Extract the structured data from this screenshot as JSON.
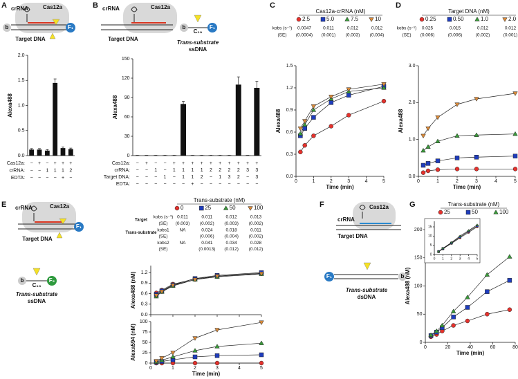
{
  "figure": {
    "panels": [
      "A",
      "B",
      "C",
      "D",
      "E",
      "F",
      "G"
    ],
    "diagrams": {
      "cas12a": "Cas12a",
      "crrna": "crRNA",
      "target_dna": "Target DNA",
      "biotin": "b",
      "f1": "F₁",
      "f2": "F₂",
      "c10": "C₁₀",
      "trans": "Trans-substrate",
      "ssdna": "ssDNA",
      "dsdna": "dsDNA"
    }
  },
  "chart_data": [
    {
      "type": "bar",
      "ylabel": "Alexa488",
      "ylim": [
        0,
        2
      ],
      "yticks": [
        {
          "value": 0,
          "label": "0.0"
        },
        {
          "value": 0.5,
          "label": "0.5"
        },
        {
          "value": 1,
          "label": "1.0"
        },
        {
          "value": 1.5,
          "label": "1.5"
        },
        {
          "value": 2,
          "label": "2.0"
        }
      ],
      "values": [
        0.12,
        0.12,
        0.1,
        1.45,
        0.15,
        0.13
      ],
      "errors": [
        0.02,
        0.02,
        0.02,
        0.08,
        0.02,
        0.02
      ],
      "color": "#111111",
      "conditions": [
        {
          "label": "Cas12a:",
          "cells": [
            "−",
            "+",
            "−",
            "+",
            "+",
            "+"
          ]
        },
        {
          "label": "crRNA:",
          "cells": [
            "−",
            "−",
            "1",
            "1",
            "1",
            "2"
          ]
        },
        {
          "label": "EDTA:",
          "cells": [
            "−",
            "−",
            "−",
            "−",
            "+",
            "−"
          ]
        }
      ]
    },
    {
      "type": "bar",
      "ylabel": "Alexa488",
      "ylim": [
        0,
        150
      ],
      "yticks": [
        0,
        30,
        60,
        90,
        120,
        150
      ],
      "values": [
        0.5,
        0.5,
        0.5,
        0.5,
        0.5,
        80,
        0.5,
        0.5,
        0.5,
        0.5,
        0.5,
        110,
        0.5,
        105
      ],
      "errors": [
        0,
        0,
        0,
        0,
        0,
        4,
        0,
        0,
        0,
        0,
        0,
        12,
        0,
        10
      ],
      "color": "#111111",
      "conditions": [
        {
          "label": "Cas12a:",
          "cells": [
            "−",
            "+",
            "−",
            "−",
            "+",
            "+",
            "+",
            "+",
            "+",
            "+",
            "+",
            "+",
            "+",
            "+"
          ]
        },
        {
          "label": "crRNA:",
          "cells": [
            "−",
            "−",
            "1",
            "−",
            "1",
            "1",
            "1",
            "1",
            "2",
            "2",
            "2",
            "2",
            "3",
            "3"
          ]
        },
        {
          "label": "Target DNA:",
          "cells": [
            "−",
            "−",
            "−",
            "1",
            "−",
            "1",
            "1",
            "2",
            "−",
            "1",
            "3",
            "2",
            "−",
            "3"
          ]
        },
        {
          "label": "EDTA:",
          "cells": [
            "−",
            "−",
            "−",
            "−",
            "−",
            "−",
            "+",
            "−",
            "−",
            "−",
            "−",
            "−",
            "−",
            "−"
          ]
        }
      ]
    },
    {
      "type": "line",
      "ylabel": "Alexa488",
      "xlabel": "Time (min)",
      "legend_title": "Cas12a-crRNA (nM)",
      "xlim": [
        0,
        5
      ],
      "xticks": [
        0,
        1,
        2,
        3,
        4,
        5
      ],
      "ylim": [
        0,
        1.5
      ],
      "yticks": [
        {
          "value": 0,
          "label": "0.0"
        },
        {
          "value": 0.3,
          "label": "0.3"
        },
        {
          "value": 0.6,
          "label": "0.6"
        },
        {
          "value": 0.9,
          "label": "0.9"
        },
        {
          "value": 1.2,
          "label": "1.2"
        },
        {
          "value": 1.5,
          "label": "1.5"
        }
      ],
      "x": [
        0.25,
        0.5,
        1,
        2,
        3,
        5
      ],
      "series": [
        {
          "name": "2.5",
          "color": "#e5322d",
          "marker": "circle",
          "values": [
            0.33,
            0.42,
            0.55,
            0.68,
            0.83,
            1.02
          ]
        },
        {
          "name": "5.0",
          "color": "#1f3dbd",
          "marker": "square",
          "values": [
            0.55,
            0.65,
            0.8,
            1.0,
            1.1,
            1.22
          ]
        },
        {
          "name": "7.5",
          "color": "#3a9a3a",
          "marker": "triangle",
          "values": [
            0.58,
            0.7,
            0.9,
            1.05,
            1.15,
            1.2
          ]
        },
        {
          "name": "10",
          "color": "#d98a3a",
          "marker": "triangle-down",
          "values": [
            0.65,
            0.75,
            0.95,
            1.08,
            1.18,
            1.25
          ]
        }
      ],
      "stats": [
        {
          "label": "kobs (s⁻¹)",
          "cells": [
            "0.0047",
            "0.011",
            "0.012",
            "0.012"
          ]
        },
        {
          "label": "(SE)",
          "cells": [
            "(0.0004)",
            "(0.001)",
            "(0.003)",
            "(0.004)"
          ]
        }
      ]
    },
    {
      "type": "line",
      "ylabel": "Alexa488",
      "xlabel": "Time (min)",
      "legend_title": "Target DNA (nM)",
      "xlim": [
        0,
        5
      ],
      "xticks": [
        0,
        1,
        2,
        3,
        4,
        5
      ],
      "ylim": [
        0,
        3
      ],
      "yticks": [
        {
          "value": 0,
          "label": "0.0"
        },
        {
          "value": 1,
          "label": "1.0"
        },
        {
          "value": 2,
          "label": "2.0"
        },
        {
          "value": 3,
          "label": "3.0"
        }
      ],
      "x": [
        0.25,
        0.5,
        1,
        2,
        3,
        5
      ],
      "series": [
        {
          "name": "0.25",
          "color": "#e5322d",
          "marker": "circle",
          "values": [
            0.1,
            0.15,
            0.18,
            0.2,
            0.2,
            0.2
          ]
        },
        {
          "name": "0.50",
          "color": "#1f3dbd",
          "marker": "square",
          "values": [
            0.3,
            0.35,
            0.42,
            0.5,
            0.52,
            0.55
          ]
        },
        {
          "name": "1.0",
          "color": "#3a9a3a",
          "marker": "triangle",
          "values": [
            0.7,
            0.8,
            0.95,
            1.1,
            1.12,
            1.15
          ]
        },
        {
          "name": "2.0",
          "color": "#d98a3a",
          "marker": "triangle-down",
          "values": [
            1.1,
            1.3,
            1.6,
            1.95,
            2.1,
            2.25
          ]
        }
      ],
      "stats": [
        {
          "label": "kobs (s⁻¹)",
          "cells": [
            "0.025",
            "0.015",
            "0.012",
            "0.012"
          ]
        },
        {
          "label": "(SE)",
          "cells": [
            "(0.006)",
            "(0.006)",
            "(0.002)",
            "(0.001)"
          ]
        }
      ]
    },
    {
      "type": "line",
      "ylabel": "Alexa488 (nM)",
      "legend_title": "Trans-substrate (nM)",
      "show_xtick_labels": false,
      "xlim": [
        0,
        5
      ],
      "xticks": [
        0,
        1,
        2,
        3,
        4,
        5
      ],
      "ylim": [
        0,
        1.4
      ],
      "yticks": [
        {
          "value": 0,
          "label": "0.0"
        },
        {
          "value": 0.3,
          "label": "0.3"
        },
        {
          "value": 0.6,
          "label": "0.6"
        },
        {
          "value": 0.9,
          "label": "0.9"
        },
        {
          "value": 1.2,
          "label": "1.2"
        }
      ],
      "x": [
        0.25,
        0.5,
        1,
        2,
        3,
        5
      ],
      "series": [
        {
          "name": "0",
          "color": "#e5322d",
          "marker": "circle",
          "values": [
            0.62,
            0.7,
            0.87,
            1.02,
            1.1,
            1.18
          ]
        },
        {
          "name": "25",
          "color": "#1f3dbd",
          "marker": "square",
          "values": [
            0.58,
            0.68,
            0.85,
            1.03,
            1.12,
            1.2
          ]
        },
        {
          "name": "50",
          "color": "#3a9a3a",
          "marker": "triangle",
          "values": [
            0.52,
            0.65,
            0.82,
            1.0,
            1.08,
            1.16
          ]
        },
        {
          "name": "100",
          "color": "#d98a3a",
          "marker": "triangle-down",
          "values": [
            0.55,
            0.66,
            0.84,
            1.0,
            1.1,
            1.17
          ]
        }
      ],
      "stats": [
        {
          "group": "Target",
          "label": "kobs (s⁻¹)",
          "cells": [
            "0.011",
            "0.011",
            "0.012",
            "0.013"
          ]
        },
        {
          "label": "(SE)",
          "cells": [
            "(0.003)",
            "(0.002)",
            "(0.003)",
            "(0.002)"
          ]
        },
        {
          "group": "Trans-substrate",
          "label": "kobs1",
          "cells": [
            "NA",
            "0.024",
            "0.018",
            "0.011"
          ]
        },
        {
          "label": "(SE)",
          "cells": [
            null,
            "(0.006)",
            "(0.004)",
            "(0.002)"
          ]
        },
        {
          "label": "kobs2",
          "cells": [
            "NA",
            "0.041",
            "0.034",
            "0.028"
          ]
        },
        {
          "label": "(SE)",
          "cells": [
            null,
            "(0.0013)",
            "(0.012)",
            "(0.012)"
          ]
        }
      ]
    },
    {
      "type": "line",
      "ylabel": "Alexa594 (nM)",
      "xlabel": "Time (min)",
      "xlim": [
        0,
        5
      ],
      "xticks": [
        0,
        1,
        2,
        3,
        4,
        5
      ],
      "ylim": [
        0,
        100
      ],
      "yticks": [
        0,
        25,
        50,
        75,
        100
      ],
      "x": [
        0.25,
        0.5,
        1,
        2,
        3,
        5
      ],
      "series": [
        {
          "name": "0",
          "color": "#e5322d",
          "marker": "circle",
          "values": [
            0,
            0,
            0,
            0,
            0,
            0
          ]
        },
        {
          "name": "25",
          "color": "#1f3dbd",
          "marker": "square",
          "values": [
            2,
            4,
            8,
            15,
            18,
            20
          ]
        },
        {
          "name": "50",
          "color": "#3a9a3a",
          "marker": "triangle",
          "values": [
            3,
            7,
            15,
            30,
            40,
            48
          ]
        },
        {
          "name": "100",
          "color": "#d98a3a",
          "marker": "triangle-down",
          "values": [
            5,
            12,
            25,
            60,
            80,
            98
          ]
        }
      ]
    },
    {
      "type": "line",
      "ylabel": "Alexa488 (nM)",
      "xlabel": "Time (min)",
      "legend_title": "Trans-substrate (nM)",
      "xlim": [
        0,
        80
      ],
      "xticks": [
        0,
        20,
        40,
        60,
        80
      ],
      "ylim": [
        0,
        200
      ],
      "yticks": [
        0,
        50,
        100,
        150,
        200
      ],
      "x": [
        5,
        10,
        15,
        25,
        37.5,
        55,
        75
      ],
      "series": [
        {
          "name": "25",
          "color": "#e5322d",
          "marker": "circle",
          "values": [
            10,
            14,
            20,
            30,
            38,
            50,
            58
          ]
        },
        {
          "name": "50",
          "color": "#1f3dbd",
          "marker": "square",
          "values": [
            12,
            18,
            26,
            45,
            62,
            90,
            110
          ]
        },
        {
          "name": "100",
          "color": "#3a9a3a",
          "marker": "triangle",
          "values": [
            13,
            20,
            30,
            55,
            80,
            120,
            152
          ]
        }
      ]
    },
    {
      "type": "line",
      "xlim": [
        0,
        5
      ],
      "xticks": [
        0,
        1,
        2,
        3,
        4,
        5
      ],
      "ylim": [
        0,
        18
      ],
      "yticks": [
        0,
        5,
        10,
        15
      ],
      "x": [
        0.5,
        1,
        2,
        3,
        4,
        5
      ],
      "series": [
        {
          "color": "#e5322d",
          "marker": "circle",
          "values": [
            1.5,
            3,
            6,
            9,
            12,
            15
          ]
        },
        {
          "color": "#1f3dbd",
          "marker": "square",
          "values": [
            1.6,
            3.2,
            6.2,
            9.5,
            12.5,
            15.5
          ]
        },
        {
          "color": "#3a9a3a",
          "marker": "triangle",
          "values": [
            1.7,
            3.4,
            6.5,
            10,
            13,
            16
          ]
        }
      ]
    }
  ]
}
